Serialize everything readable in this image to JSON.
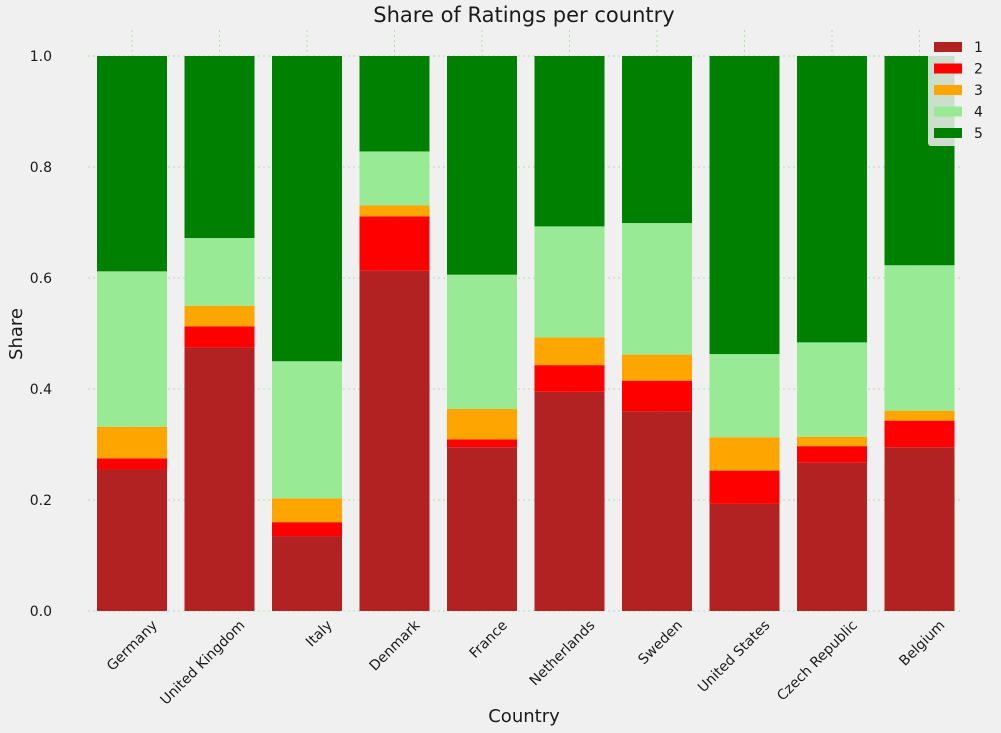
{
  "chart_data": {
    "type": "bar",
    "stacked": true,
    "title": "Share of Ratings per country",
    "xlabel": "Country",
    "ylabel": "Share",
    "ylim": [
      0,
      1.0
    ],
    "yticks": [
      "0.0",
      "0.2",
      "0.4",
      "0.6",
      "0.8",
      "1.0"
    ],
    "grid": true,
    "legend_position": "top-right",
    "categories": [
      "Germany",
      "United Kingdom",
      "Italy",
      "Denmark",
      "France",
      "Netherlands",
      "Sweden",
      "United States",
      "Czech Republic",
      "Belgium"
    ],
    "series": [
      {
        "name": "1",
        "color": "#b22222",
        "values": [
          0.255,
          0.475,
          0.135,
          0.613,
          0.295,
          0.395,
          0.36,
          0.193,
          0.267,
          0.295
        ]
      },
      {
        "name": "2",
        "color": "#ff0000",
        "values": [
          0.02,
          0.038,
          0.025,
          0.098,
          0.014,
          0.048,
          0.055,
          0.06,
          0.03,
          0.048
        ]
      },
      {
        "name": "3",
        "color": "#ffa500",
        "values": [
          0.057,
          0.037,
          0.043,
          0.02,
          0.055,
          0.05,
          0.047,
          0.06,
          0.017,
          0.018
        ]
      },
      {
        "name": "4",
        "color": "#98eb94",
        "values": [
          0.28,
          0.122,
          0.247,
          0.097,
          0.242,
          0.2,
          0.237,
          0.15,
          0.17,
          0.262
        ]
      },
      {
        "name": "5",
        "color": "#008000",
        "values": [
          0.388,
          0.328,
          0.55,
          0.172,
          0.394,
          0.307,
          0.301,
          0.537,
          0.516,
          0.377
        ]
      }
    ]
  }
}
